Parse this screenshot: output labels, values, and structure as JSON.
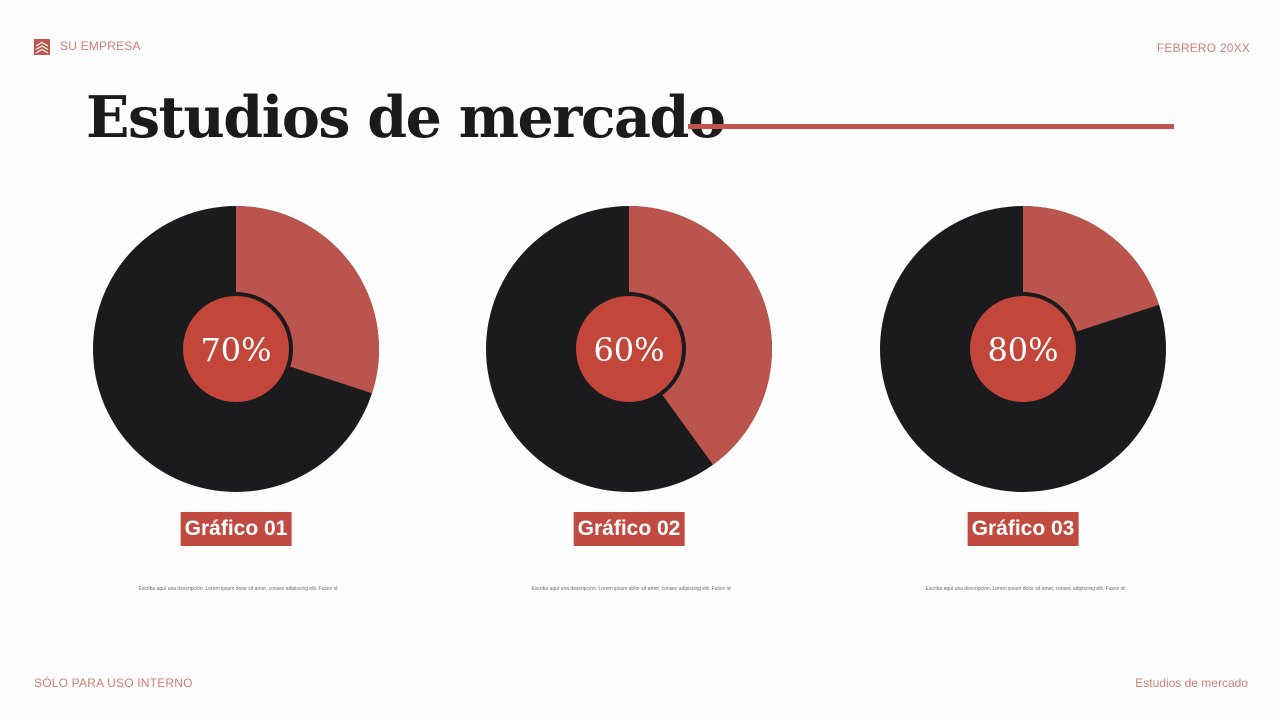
{
  "header": {
    "company": "SU EMPRESA",
    "date": "FEBRERO 20XX"
  },
  "title": "Estudios de mercado",
  "footer": {
    "left": "SÓLO PARA USO INTERNO",
    "right": "Estudios de mercado"
  },
  "colors": {
    "dark": "#1b1a1c",
    "accent": "#bb544c",
    "center": "#c3463b",
    "label_bg": "#c14b40"
  },
  "chart_data": [
    {
      "type": "pie",
      "center_label": "70%",
      "value": 70,
      "slices": [
        {
          "label": "dark",
          "value": 70
        },
        {
          "label": "accent",
          "value": 30
        }
      ],
      "label": "Gráfico 01",
      "description": "Escriba aquí una descripción. Lorem ipsum dolor sit amet, consec adipiscing elit. Fusce id"
    },
    {
      "type": "pie",
      "center_label": "60%",
      "value": 60,
      "slices": [
        {
          "label": "dark",
          "value": 60
        },
        {
          "label": "accent",
          "value": 40
        }
      ],
      "label": "Gráfico 02",
      "description": "Escriba aquí una descripción. Lorem ipsum dolor sit amet, consec adipiscing elit. Fusce id"
    },
    {
      "type": "pie",
      "center_label": "80%",
      "value": 80,
      "slices": [
        {
          "label": "dark",
          "value": 80
        },
        {
          "label": "accent",
          "value": 20
        }
      ],
      "label": "Gráfico 03",
      "description": "Escriba aquí una descripción. Lorem ipsum dolor sit amet, consec adipiscing elit. Fusce id"
    }
  ]
}
